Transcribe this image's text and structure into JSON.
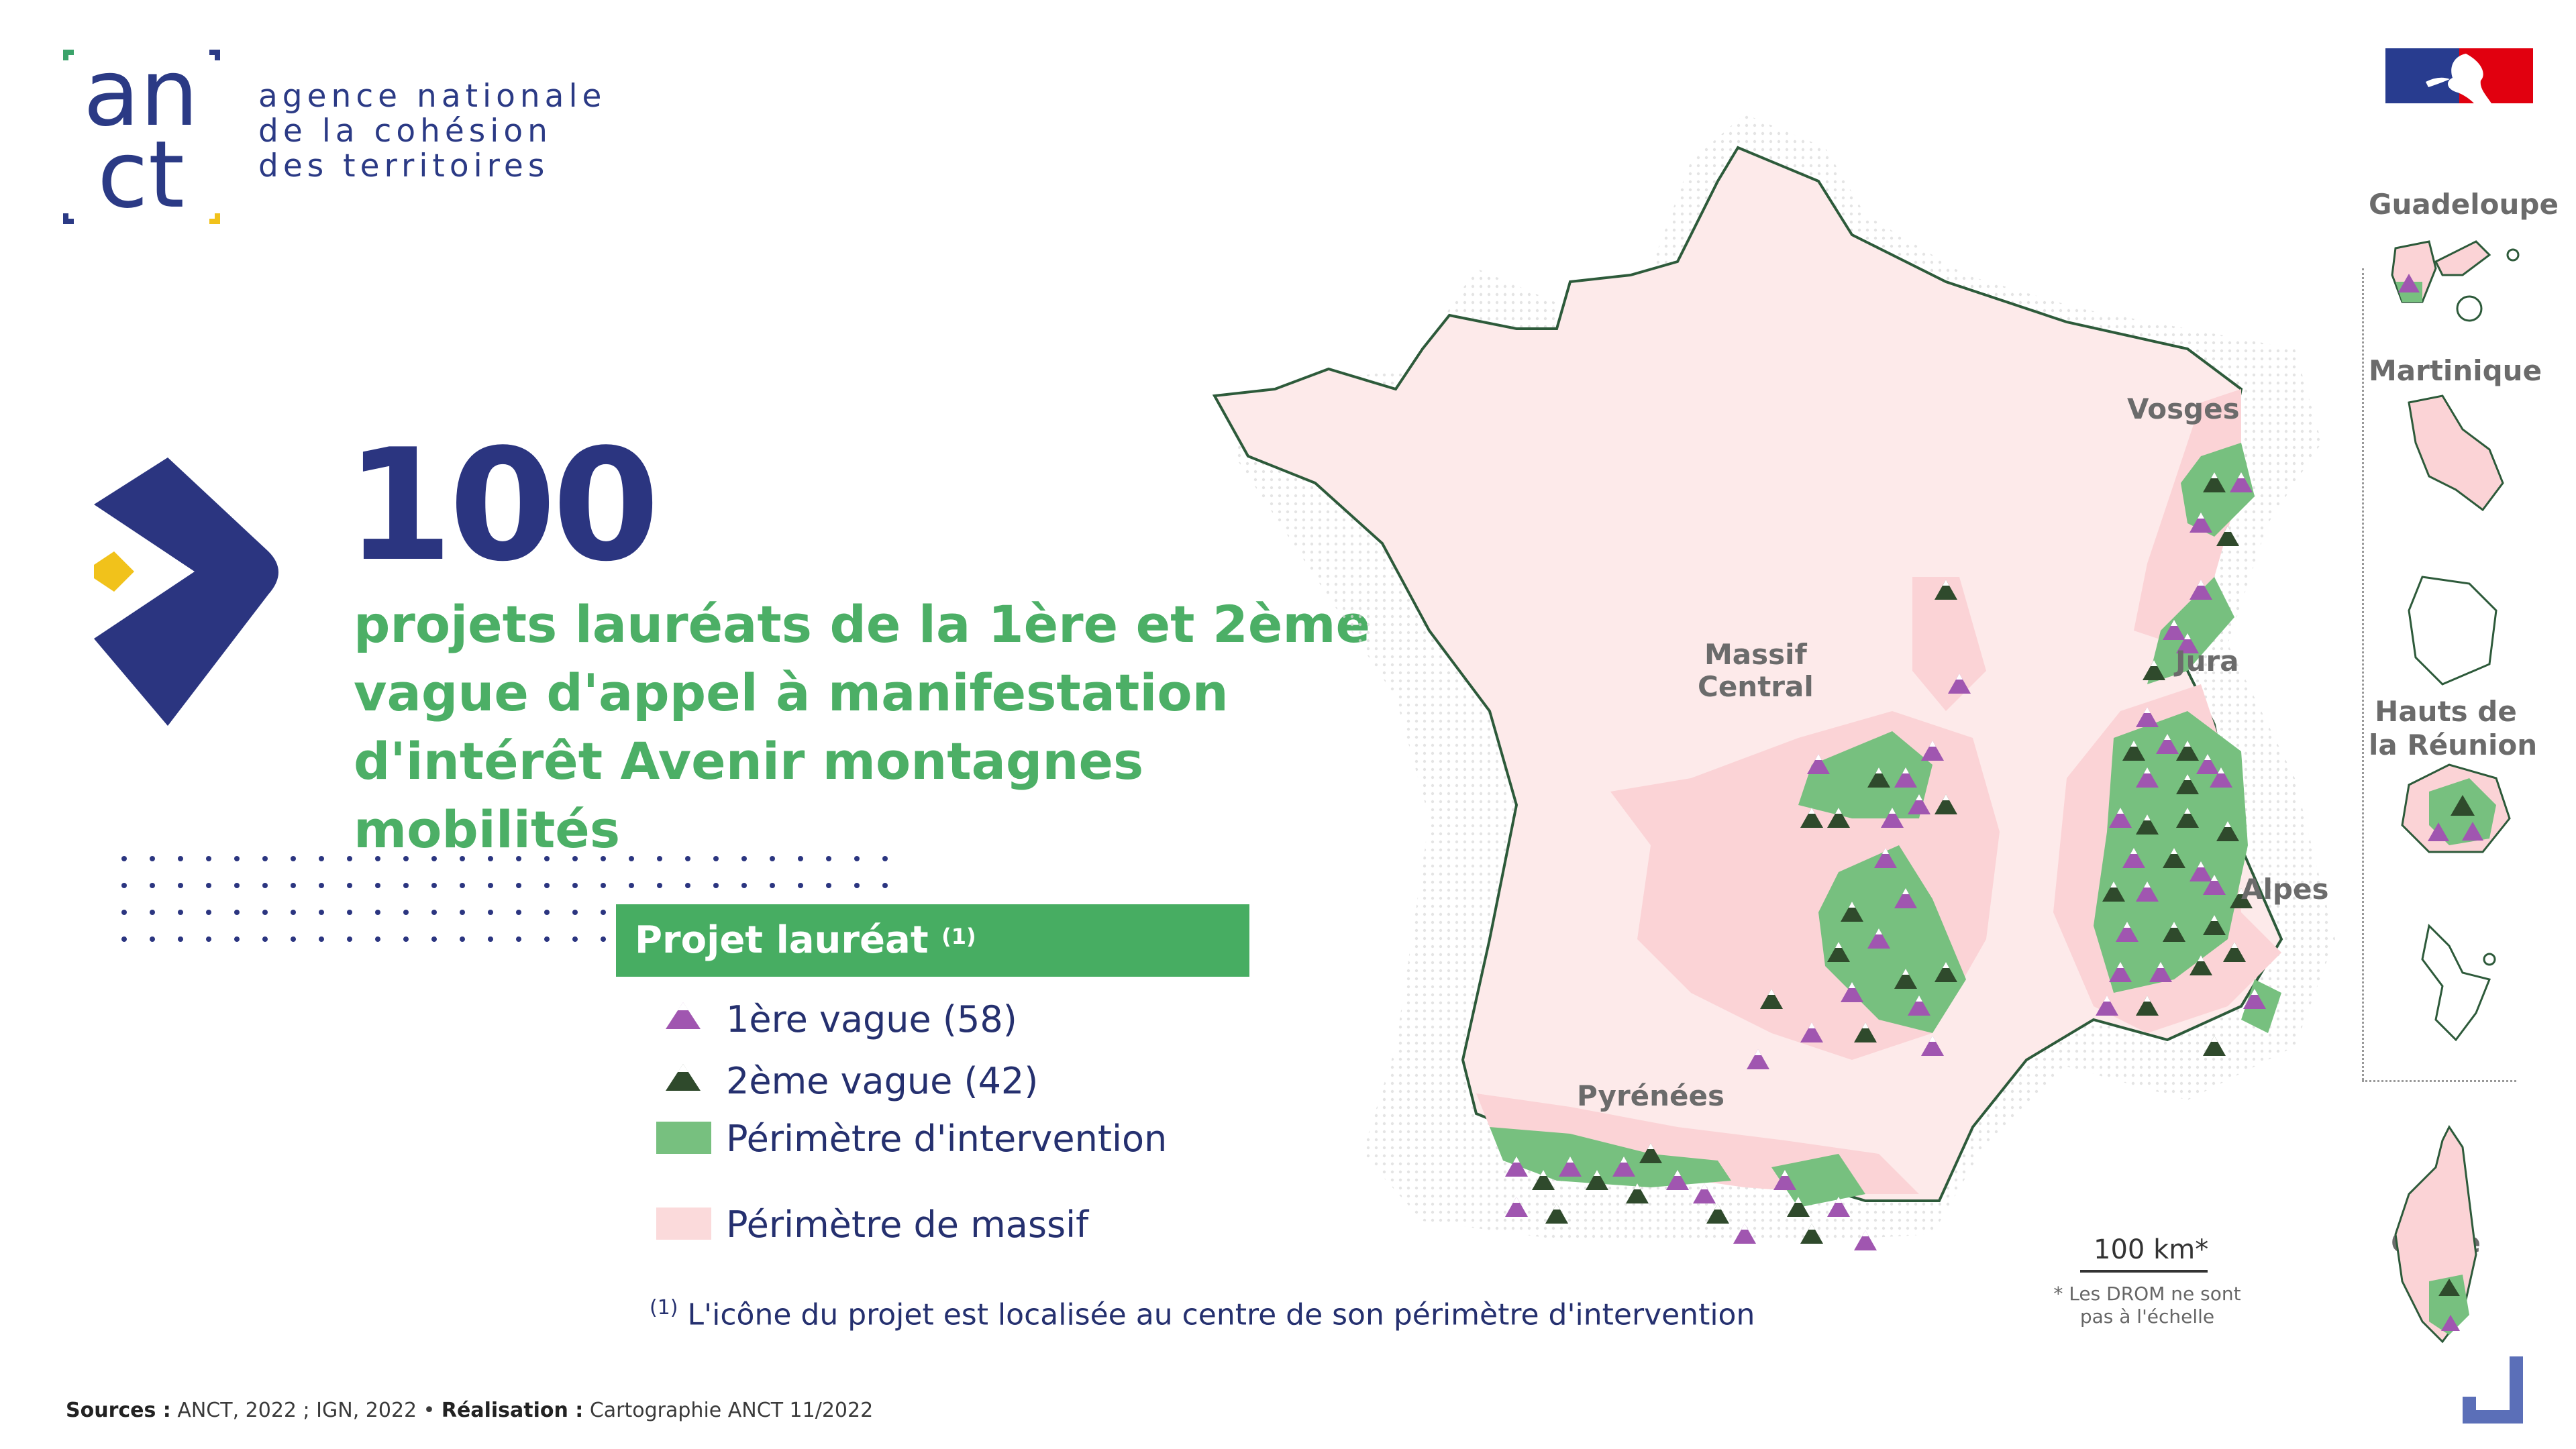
{
  "logo": {
    "mark_top": "an",
    "mark_bottom": "ct",
    "line1": "agence nationale",
    "line2": "de la cohésion",
    "line3": "des territoires"
  },
  "hero": {
    "count": "100",
    "line1": "projets lauréats de la 1ère et 2ème",
    "line2": "vague d'appel à manifestation",
    "line3": "d'intérêt Avenir montagnes mobilités"
  },
  "legend": {
    "header": "Projet lauréat",
    "header_note": "(1)",
    "items": [
      {
        "label": "1ère vague (58)",
        "icon": "purple-triangle-icon"
      },
      {
        "label": "2ème vague (42)",
        "icon": "dark-green-triangle-icon"
      },
      {
        "label": "Périmètre d'intervention",
        "swatch": "#77c07f"
      },
      {
        "label": "Périmètre de massif",
        "swatch": "#fbdadb"
      }
    ],
    "footnote_mark": "(1)",
    "footnote": "L'icône du projet est localisée au centre de son périmètre d'intervention"
  },
  "map": {
    "regions": {
      "vosges": "Vosges",
      "jura": "Jura",
      "alpes": "Alpes",
      "massif_central_1": "Massif",
      "massif_central_2": "Central",
      "pyrenees": "Pyrénées"
    },
    "drom": {
      "guadeloupe": "Guadeloupe",
      "martinique": "Martinique",
      "reunion_1": "Hauts de",
      "reunion_2": "la Réunion",
      "corse": "Corse"
    },
    "scale": "100 km*",
    "scale_note_1": "* Les DROM ne sont",
    "scale_note_2": "pas à l'échelle"
  },
  "sources": {
    "label": "Sources :",
    "text": " ANCT, 2022 ; IGN, 2022 • ",
    "made_label": "Réalisation :",
    "made_text": " Cartographie ANCT 11/2022"
  },
  "colors": {
    "navy": "#2b3580",
    "green_title": "#4caf66",
    "legend_green": "#47ad62",
    "perimetre_intervention": "#77c07f",
    "perimetre_massif": "#fbdadb",
    "triangle_wave1": "#a056b0",
    "triangle_wave2": "#2f4a2c"
  }
}
